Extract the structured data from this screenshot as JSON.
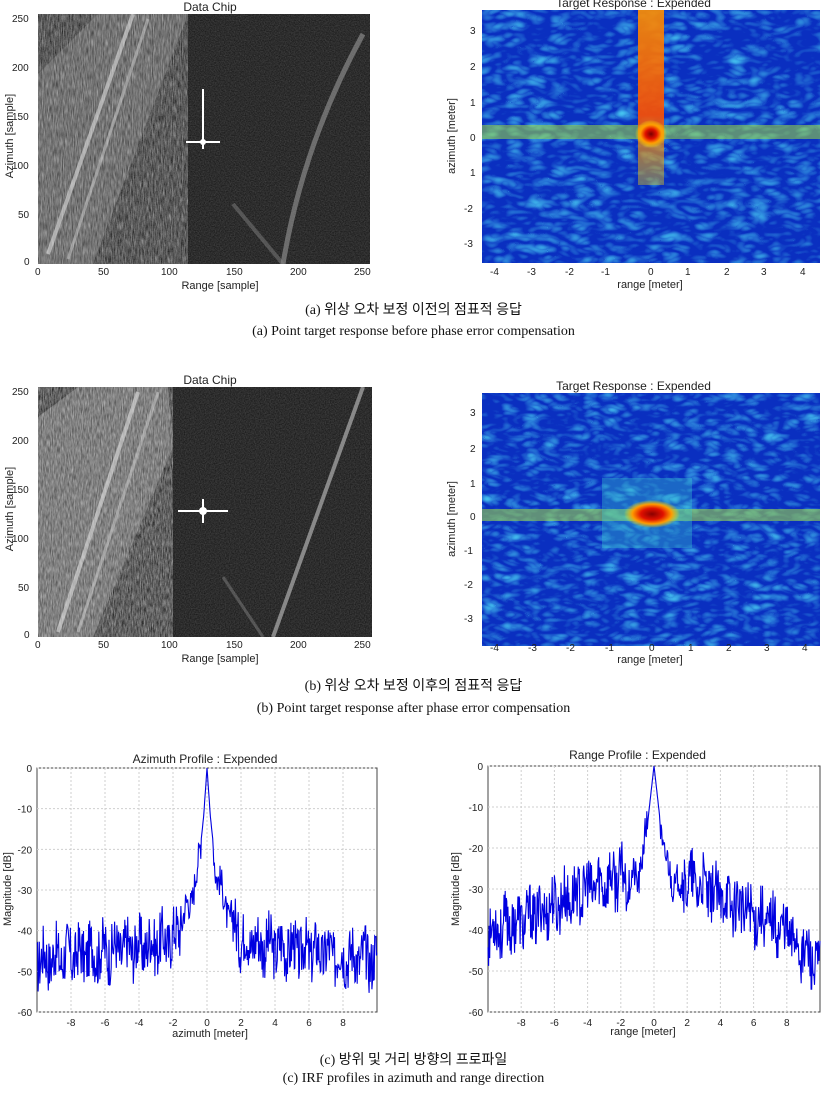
{
  "figure_a": {
    "data_chip_title": "Data Chip",
    "response_title": "Target Response : Expended",
    "caption_kr": "(a)  위상  오차  보정  이전의  점표적  응답",
    "caption_en": "(a)  Point  target  response  before  phase  error  compensation"
  },
  "figure_b": {
    "data_chip_title": "Data Chip",
    "response_title": "Target Response : Expended",
    "caption_kr": "(b)  위상  오차  보정  이후의  점표적  응답",
    "caption_en": "(b)  Point  target  response  after  phase  error  compensation"
  },
  "figure_c": {
    "caption_kr": "(c)  방위  및  거리  방향의  프로파일",
    "caption_en": "(c)  IRF  profiles  in  azimuth  and  range  direction"
  },
  "chart_data": [
    {
      "id": "a-data-chip",
      "type": "heatmap",
      "title": "Data Chip",
      "xlabel": "Range [sample]",
      "ylabel": "Azimuth [sample]",
      "xlim": [
        0,
        256
      ],
      "ylim": [
        0,
        256
      ],
      "xticks": [
        0,
        50,
        100,
        150,
        200,
        250
      ],
      "yticks": [
        0,
        50,
        100,
        150,
        200,
        250
      ],
      "colormap": "gray",
      "point_target": {
        "range": 127,
        "azimuth": 128
      }
    },
    {
      "id": "a-target-response",
      "type": "heatmap",
      "title": "Target Response : Expended",
      "xlabel": "range [meter]",
      "ylabel": "azimuth [meter]",
      "xlim": [
        -4.6,
        4.6
      ],
      "ylim": [
        -3.5,
        3.5
      ],
      "xticks": [
        -4,
        -3,
        -2,
        -1,
        0,
        1,
        2,
        3,
        4
      ],
      "yticks": [
        3,
        2,
        1,
        0,
        1,
        -2,
        -3
      ],
      "colormap": "jet",
      "peak": {
        "range": 0,
        "azimuth": 0
      }
    },
    {
      "id": "b-data-chip",
      "type": "heatmap",
      "title": "Data Chip",
      "xlabel": "Range [sample]",
      "ylabel": "Azimuth [sample]",
      "xlim": [
        0,
        256
      ],
      "ylim": [
        0,
        256
      ],
      "xticks": [
        0,
        50,
        100,
        150,
        200,
        250
      ],
      "yticks": [
        0,
        50,
        100,
        150,
        200,
        250
      ],
      "colormap": "gray",
      "point_target": {
        "range": 127,
        "azimuth": 128
      }
    },
    {
      "id": "b-target-response",
      "type": "heatmap",
      "title": "Target Response : Expended",
      "xlabel": "range [meter]",
      "ylabel": "azimuth [meter]",
      "xlim": [
        -4.6,
        4.6
      ],
      "ylim": [
        -3.5,
        3.5
      ],
      "xticks": [
        -4,
        -3,
        -2,
        -1,
        0,
        1,
        2,
        3,
        4
      ],
      "yticks": [
        3,
        2,
        1,
        0,
        -1,
        -2,
        -3
      ],
      "colormap": "jet",
      "peak": {
        "range": 0,
        "azimuth": 0
      }
    },
    {
      "id": "c-azimuth-profile",
      "type": "line",
      "title": "Azimuth Profile : Expended",
      "xlabel": "azimuth [meter]",
      "ylabel": "Magnitude [dB]",
      "xlim": [
        -10,
        10
      ],
      "ylim": [
        -60,
        0
      ],
      "xticks": [
        -8,
        -6,
        -4,
        -2,
        0,
        2,
        4,
        6,
        8
      ],
      "yticks": [
        0,
        -10,
        -20,
        -30,
        -40,
        -50,
        -60
      ],
      "grid": true,
      "color": "#0000e0",
      "series": [
        {
          "x": [
            -10,
            -8,
            -6,
            -4,
            -2,
            -1,
            -0.5,
            -0.2,
            0,
            0.2,
            0.5,
            1,
            2,
            4,
            6,
            8,
            10
          ],
          "y": [
            -47,
            -46,
            -45,
            -44,
            -42,
            -33,
            -24,
            -12,
            0,
            -12,
            -24,
            -33,
            -42,
            -44,
            -45,
            -46,
            -47
          ]
        }
      ]
    },
    {
      "id": "c-range-profile",
      "type": "line",
      "title": "Range Profile : Expended",
      "xlabel": "range [meter]",
      "ylabel": "Magnitude [dB]",
      "xlim": [
        -10,
        10
      ],
      "ylim": [
        -60,
        0
      ],
      "xticks": [
        -8,
        -6,
        -4,
        -2,
        0,
        2,
        4,
        6,
        8
      ],
      "yticks": [
        0,
        -10,
        -20,
        -30,
        -40,
        -50,
        -60
      ],
      "grid": true,
      "color": "#0000e0",
      "series": [
        {
          "x": [
            -10,
            -8,
            -6,
            -4,
            -2,
            -1,
            -0.5,
            0,
            0.5,
            1,
            2,
            4,
            6,
            8,
            10
          ],
          "y": [
            -40,
            -38,
            -34,
            -30,
            -27,
            -28,
            -18,
            0,
            -18,
            -28,
            -28,
            -32,
            -36,
            -40,
            -50
          ]
        }
      ]
    }
  ]
}
